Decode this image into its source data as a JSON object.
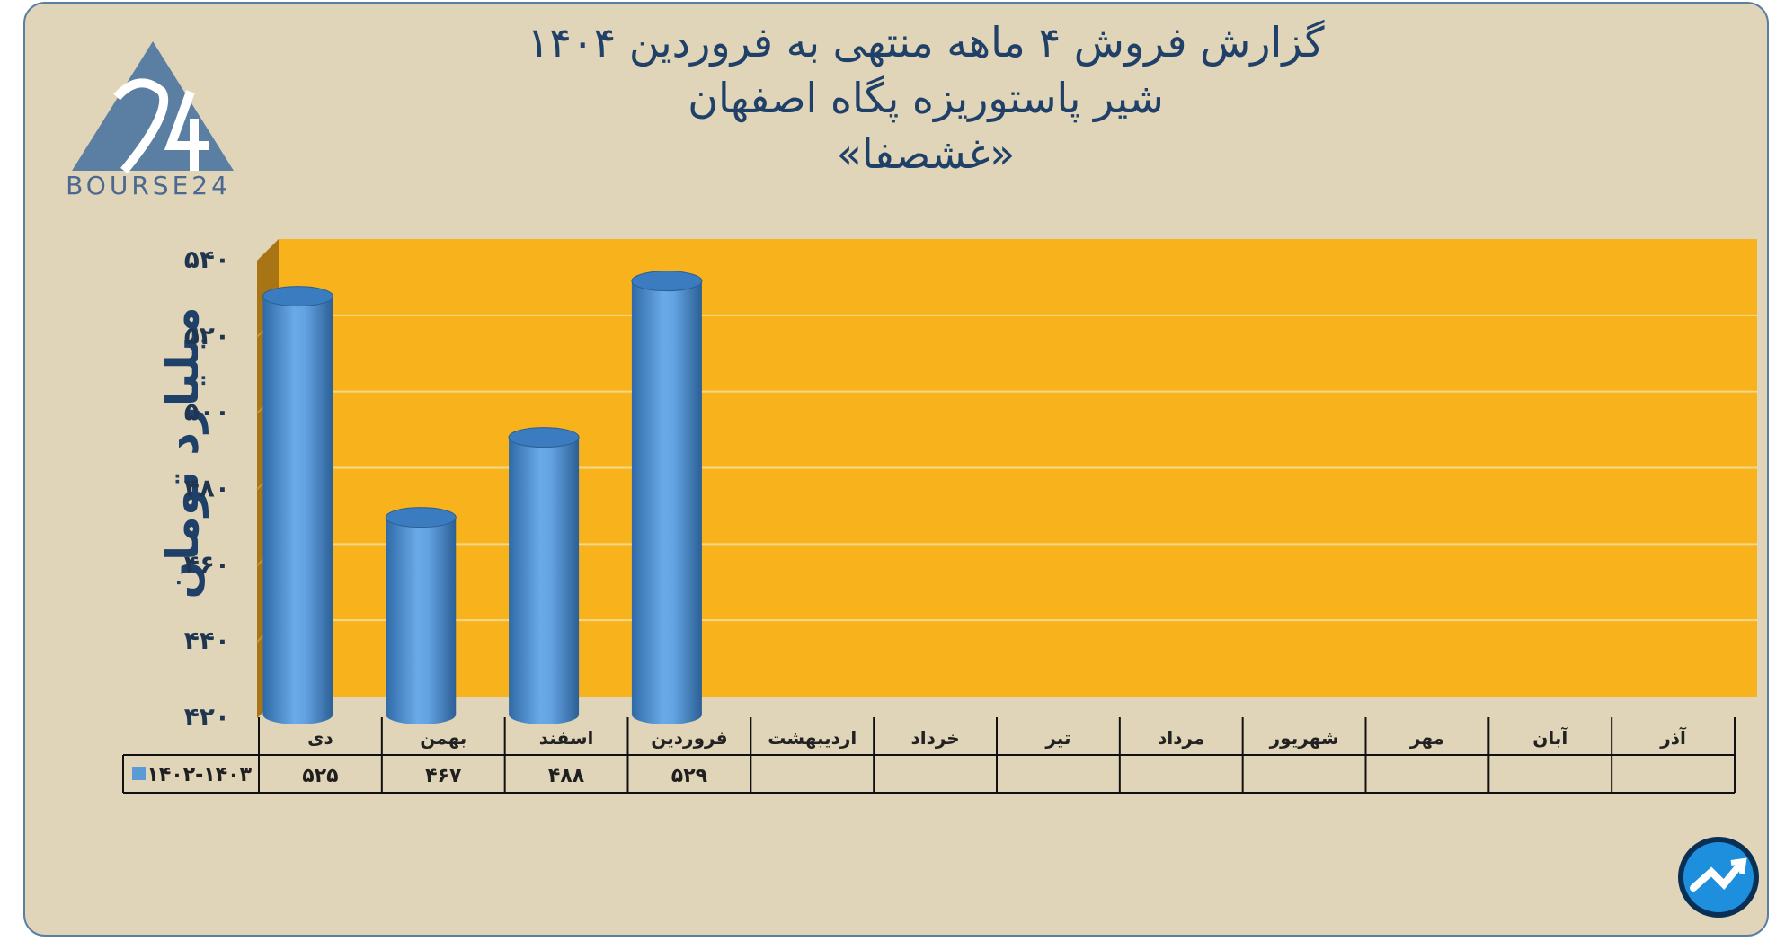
{
  "header": {
    "title_line1": "گزارش  فروش ۴ ماهه منتهی به فروردین ۱۴۰۴",
    "title_line2": "شیر پاستوریزه پگاه اصفهان",
    "title_line3": "«غشصفا»"
  },
  "branding": {
    "logo_text": "BOURSE24",
    "logo_color": "#4a6890"
  },
  "chart_data": {
    "type": "bar",
    "style": "3d-cylinder",
    "ylabel": "میلیارد تومان",
    "ylim": [
      420,
      540
    ],
    "yticks": [
      420,
      440,
      460,
      480,
      500,
      520,
      540
    ],
    "ytick_labels": [
      "۴۲۰",
      "۴۴۰",
      "۴۶۰",
      "۴۸۰",
      "۵۰۰",
      "۵۲۰",
      "۵۴۰"
    ],
    "grid": true,
    "categories": [
      "دی",
      "بهمن",
      "اسفند",
      "فروردین",
      "اردیبهشت",
      "خرداد",
      "تیر",
      "مرداد",
      "شهریور",
      "مهر",
      "آبان",
      "آذر"
    ],
    "series": [
      {
        "name": "۱۴۰۲-۱۴۰۳",
        "values": [
          525,
          467,
          488,
          529,
          null,
          null,
          null,
          null,
          null,
          null,
          null,
          null
        ],
        "value_labels": [
          "۵۲۵",
          "۴۶۷",
          "۴۸۸",
          "۵۲۹",
          "",
          "",
          "",
          "",
          "",
          "",
          "",
          ""
        ],
        "color": "#5b9bd5"
      }
    ],
    "legend": "data-table",
    "plot_background": "#f8b21c",
    "side_wall_color": "#a87414"
  }
}
